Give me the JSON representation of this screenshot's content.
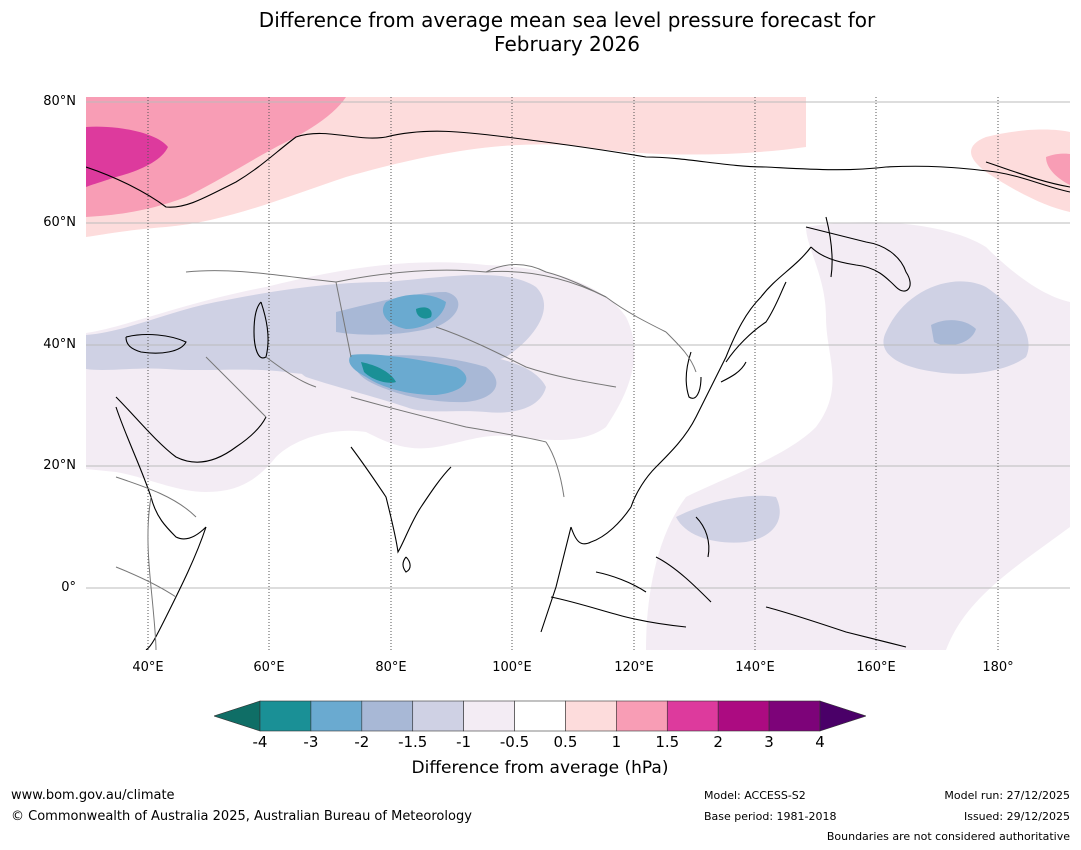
{
  "title_line1": "Difference from average mean sea level pressure forecast for",
  "title_line2": "February 2026",
  "map": {
    "lat_labels": [
      "80°N",
      "60°N",
      "40°N",
      "20°N",
      "0°"
    ],
    "lon_labels": [
      "40°E",
      "60°E",
      "80°E",
      "100°E",
      "120°E",
      "140°E",
      "160°E",
      "180°"
    ]
  },
  "legend": {
    "ticks": [
      "-4",
      "-3",
      "-2",
      "-1.5",
      "-1",
      "-0.5",
      "0.5",
      "1",
      "1.5",
      "2",
      "3",
      "4"
    ],
    "colors": [
      "#0f6e66",
      "#1a9096",
      "#6aaad0",
      "#a8b8d6",
      "#cfd1e4",
      "#f3ecf4",
      "#ffffff",
      "#fddcdc",
      "#f89db5",
      "#dd3a9d",
      "#ac0b81",
      "#7d0379",
      "#4a0068"
    ],
    "label": "Difference from average (hPa)"
  },
  "footer": {
    "url": "www.bom.gov.au/climate",
    "copyright": "© Commonwealth of Australia 2025, Australian Bureau of Meteorology",
    "model": "Model: ACCESS-S2",
    "base_period": "Base period: 1981-2018",
    "model_run": "Model run: 27/12/2025",
    "issued": "Issued: 29/12/2025",
    "disclaimer": "Boundaries are not considered authoritative"
  }
}
